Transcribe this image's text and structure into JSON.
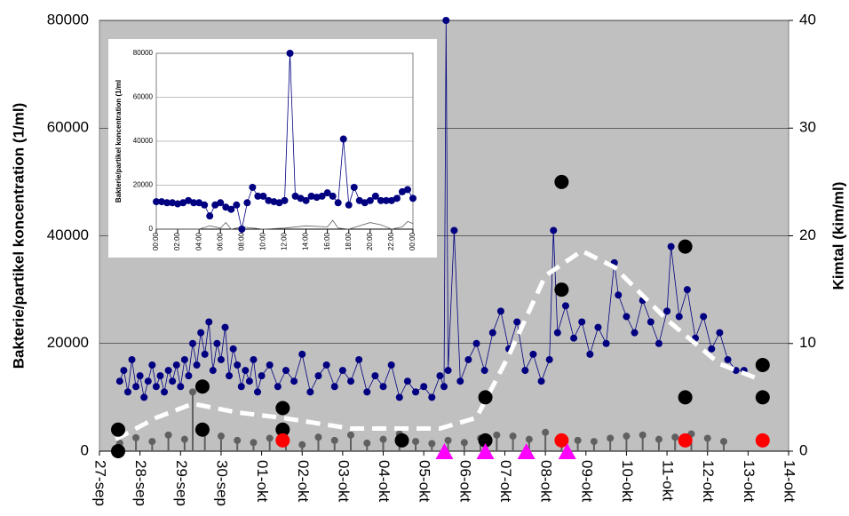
{
  "chart_data": [
    {
      "type": "combo",
      "ylabel": "Bakterie/partikel koncentration (1/ml)",
      "y2label": "Kimtal (kim/ml)",
      "xlim": [
        0,
        17
      ],
      "xticks": [
        {
          "value": 0,
          "label": "27-sep"
        },
        {
          "value": 1,
          "label": "28-sep"
        },
        {
          "value": 2,
          "label": "29-sep"
        },
        {
          "value": 3,
          "label": "30-sep"
        },
        {
          "value": 4,
          "label": "01-okt"
        },
        {
          "value": 5,
          "label": "02-okt"
        },
        {
          "value": 6,
          "label": "03-okt"
        },
        {
          "value": 7,
          "label": "04-okt"
        },
        {
          "value": 8,
          "label": "05-okt"
        },
        {
          "value": 9,
          "label": "06-okt"
        },
        {
          "value": 10,
          "label": "07-okt"
        },
        {
          "value": 11,
          "label": "08-okt"
        },
        {
          "value": 12,
          "label": "09-okt"
        },
        {
          "value": 13,
          "label": "10-okt"
        },
        {
          "value": 14,
          "label": "11-okt"
        },
        {
          "value": 15,
          "label": "12-okt"
        },
        {
          "value": 16,
          "label": "13-okt"
        },
        {
          "value": 17,
          "label": "14-okt"
        }
      ],
      "ylim": [
        0,
        80000
      ],
      "yticks": [
        0,
        20000,
        40000,
        60000,
        80000
      ],
      "y2lim": [
        0,
        40
      ],
      "y2ticks": [
        0,
        10,
        20,
        30,
        40
      ],
      "grid": true,
      "background": "#c0c0c0",
      "series": [
        {
          "kind": "stem",
          "color": "#606060",
          "x": [
            0.5,
            0.9,
            1.3,
            1.7,
            2.1,
            2.3,
            2.6,
            3.0,
            3.4,
            3.8,
            4.2,
            4.6,
            5.0,
            5.4,
            5.8,
            6.2,
            6.6,
            7.0,
            7.4,
            7.8,
            8.2,
            8.6,
            9.0,
            9.4,
            9.8,
            10.2,
            10.6,
            11.0,
            11.4,
            11.8,
            12.2,
            12.6,
            13.0,
            13.4,
            13.8,
            14.2,
            14.6,
            15.0,
            15.4
          ],
          "values": [
            1500,
            2500,
            1800,
            3000,
            2200,
            11000,
            3500,
            2800,
            2000,
            1600,
            2400,
            1800,
            1200,
            2600,
            2000,
            3000,
            1500,
            2200,
            3200,
            1800,
            1400,
            2000,
            1600,
            2400,
            3000,
            2800,
            2200,
            3500,
            2600,
            2000,
            1800,
            2400,
            2800,
            3000,
            2200,
            2600,
            3200,
            2400,
            1800
          ]
        },
        {
          "kind": "line-marker",
          "color": "#000080",
          "x": [
            0.5,
            0.6,
            0.7,
            0.8,
            0.9,
            1.0,
            1.1,
            1.2,
            1.3,
            1.4,
            1.5,
            1.6,
            1.7,
            1.8,
            1.9,
            2.0,
            2.1,
            2.2,
            2.3,
            2.4,
            2.5,
            2.6,
            2.7,
            2.8,
            2.9,
            3.0,
            3.1,
            3.2,
            3.3,
            3.4,
            3.5,
            3.6,
            3.7,
            3.8,
            3.9,
            4.0,
            4.2,
            4.4,
            4.6,
            4.8,
            5.0,
            5.2,
            5.4,
            5.6,
            5.8,
            6.0,
            6.2,
            6.4,
            6.6,
            6.8,
            7.0,
            7.2,
            7.4,
            7.6,
            7.8,
            8.0,
            8.2,
            8.4,
            8.5,
            8.55,
            8.6,
            8.75,
            8.9,
            9.1,
            9.3,
            9.5,
            9.7,
            9.9,
            10.1,
            10.3,
            10.5,
            10.7,
            10.9,
            11.1,
            11.2,
            11.3,
            11.5,
            11.7,
            11.9,
            12.1,
            12.3,
            12.5,
            12.7,
            12.8,
            13.0,
            13.2,
            13.4,
            13.6,
            13.8,
            14.0,
            14.1,
            14.3,
            14.5,
            14.7,
            14.9,
            15.1,
            15.3,
            15.5,
            15.7,
            15.9
          ],
          "values": [
            13000,
            15000,
            11000,
            17000,
            12000,
            14000,
            10000,
            13000,
            16000,
            12000,
            14000,
            11000,
            15000,
            13000,
            16000,
            12000,
            17000,
            14000,
            20000,
            16000,
            22000,
            18000,
            24000,
            15000,
            20000,
            17000,
            23000,
            14000,
            19000,
            16000,
            12000,
            15000,
            13000,
            17000,
            11000,
            14000,
            16000,
            12000,
            15000,
            13000,
            18000,
            11000,
            14000,
            16000,
            12000,
            15000,
            13000,
            17000,
            11000,
            14000,
            12000,
            16000,
            10000,
            13000,
            11000,
            12000,
            10000,
            14000,
            12000,
            80000,
            15000,
            41000,
            13000,
            17000,
            20000,
            15000,
            22000,
            26000,
            19000,
            24000,
            15000,
            18000,
            13000,
            17000,
            41000,
            22000,
            27000,
            21000,
            24000,
            18000,
            23000,
            20000,
            35000,
            29000,
            25000,
            22000,
            28000,
            24000,
            20000,
            26000,
            38000,
            25000,
            30000,
            21000,
            25000,
            19000,
            22000,
            17000,
            15000,
            15000
          ]
        },
        {
          "kind": "dashed",
          "color": "#ffffff",
          "axis": "y2",
          "x": [
            0.4,
            1.4,
            2.3,
            3.4,
            4.5,
            6.2,
            8.4,
            9.3,
            10.1,
            11.0,
            11.9,
            12.7,
            14.0,
            15.3,
            16.2
          ],
          "values": [
            1.1,
            3.1,
            4.4,
            3.6,
            3.1,
            2.1,
            2.1,
            3.1,
            8.9,
            16.3,
            18.6,
            17.1,
            12.2,
            8.1,
            6.8
          ]
        },
        {
          "kind": "dot",
          "color": "#000000",
          "axis": "y2",
          "x": [
            0.46,
            0.46,
            2.54,
            2.54,
            4.52,
            4.52,
            7.46,
            9.52,
            9.52,
            11.4,
            11.4,
            14.45,
            14.45,
            16.36,
            16.36
          ],
          "values": [
            2,
            0,
            6,
            2,
            4,
            2,
            1,
            5,
            1,
            25,
            15,
            19,
            5,
            8,
            5
          ]
        },
        {
          "kind": "dot",
          "color": "#ff0000",
          "axis": "y2",
          "x": [
            4.52,
            11.4,
            14.45,
            16.36
          ],
          "values": [
            1,
            1,
            1,
            1
          ]
        },
        {
          "kind": "triangle",
          "color": "#ff00ff",
          "axis": "y2",
          "x": [
            8.51,
            9.52,
            10.53,
            11.54
          ],
          "values": [
            0,
            0,
            0,
            0
          ]
        }
      ]
    },
    {
      "type": "line",
      "ylabel": "Bakterie/partikel koncentration (1/ml",
      "xlim": [
        0,
        24
      ],
      "xticks": [
        {
          "value": 0,
          "label": "00:00"
        },
        {
          "value": 2,
          "label": "02:00"
        },
        {
          "value": 4,
          "label": "04:00"
        },
        {
          "value": 6,
          "label": "06:00"
        },
        {
          "value": 8,
          "label": "08:00"
        },
        {
          "value": 10,
          "label": "10:00"
        },
        {
          "value": 12,
          "label": "12:00"
        },
        {
          "value": 14,
          "label": "14:00"
        },
        {
          "value": 16,
          "label": "16:00"
        },
        {
          "value": 18,
          "label": "18:00"
        },
        {
          "value": 20,
          "label": "20:00"
        },
        {
          "value": 22,
          "label": "22:00"
        },
        {
          "value": 24,
          "label": "00:00"
        }
      ],
      "ylim": [
        0,
        80000
      ],
      "yticks": [
        0,
        20000,
        40000,
        60000,
        80000
      ],
      "grid": true,
      "background": "#ffffff",
      "series": [
        {
          "kind": "line",
          "color": "#606060",
          "x": [
            0,
            2,
            4,
            5,
            6,
            6.5,
            7,
            8,
            10,
            12,
            14,
            16,
            16.5,
            17,
            18,
            20,
            21,
            22,
            23,
            23.5,
            24
          ],
          "values": [
            0,
            0,
            0,
            1500,
            500,
            3000,
            0,
            1000,
            0,
            500,
            1500,
            1000,
            4000,
            500,
            0,
            3000,
            2000,
            0,
            1000,
            3500,
            2500
          ]
        },
        {
          "kind": "line-marker",
          "color": "#000080",
          "x": [
            0,
            0.5,
            1,
            1.5,
            2,
            2.5,
            3,
            3.5,
            4,
            4.5,
            5,
            5.5,
            6,
            6.5,
            7,
            7.5,
            8,
            8.5,
            9,
            9.5,
            10,
            10.5,
            11,
            11.5,
            12,
            12.5,
            13,
            13.5,
            14,
            14.5,
            15,
            15.5,
            16,
            16.5,
            17,
            17.5,
            18,
            18.5,
            19,
            19.5,
            20,
            20.5,
            21,
            21.5,
            22,
            22.5,
            23,
            23.5,
            24
          ],
          "values": [
            12500,
            12500,
            12000,
            12000,
            11500,
            12000,
            13000,
            12000,
            12000,
            11000,
            6000,
            11000,
            12000,
            10000,
            9000,
            11000,
            0,
            12000,
            19000,
            15000,
            15000,
            13000,
            12500,
            12000,
            13000,
            80000,
            15000,
            14000,
            13000,
            15000,
            14500,
            15000,
            16500,
            15000,
            12000,
            41000,
            11000,
            19000,
            13000,
            12000,
            13000,
            15000,
            13000,
            13000,
            13000,
            14000,
            17000,
            18000,
            14000
          ]
        }
      ]
    }
  ]
}
